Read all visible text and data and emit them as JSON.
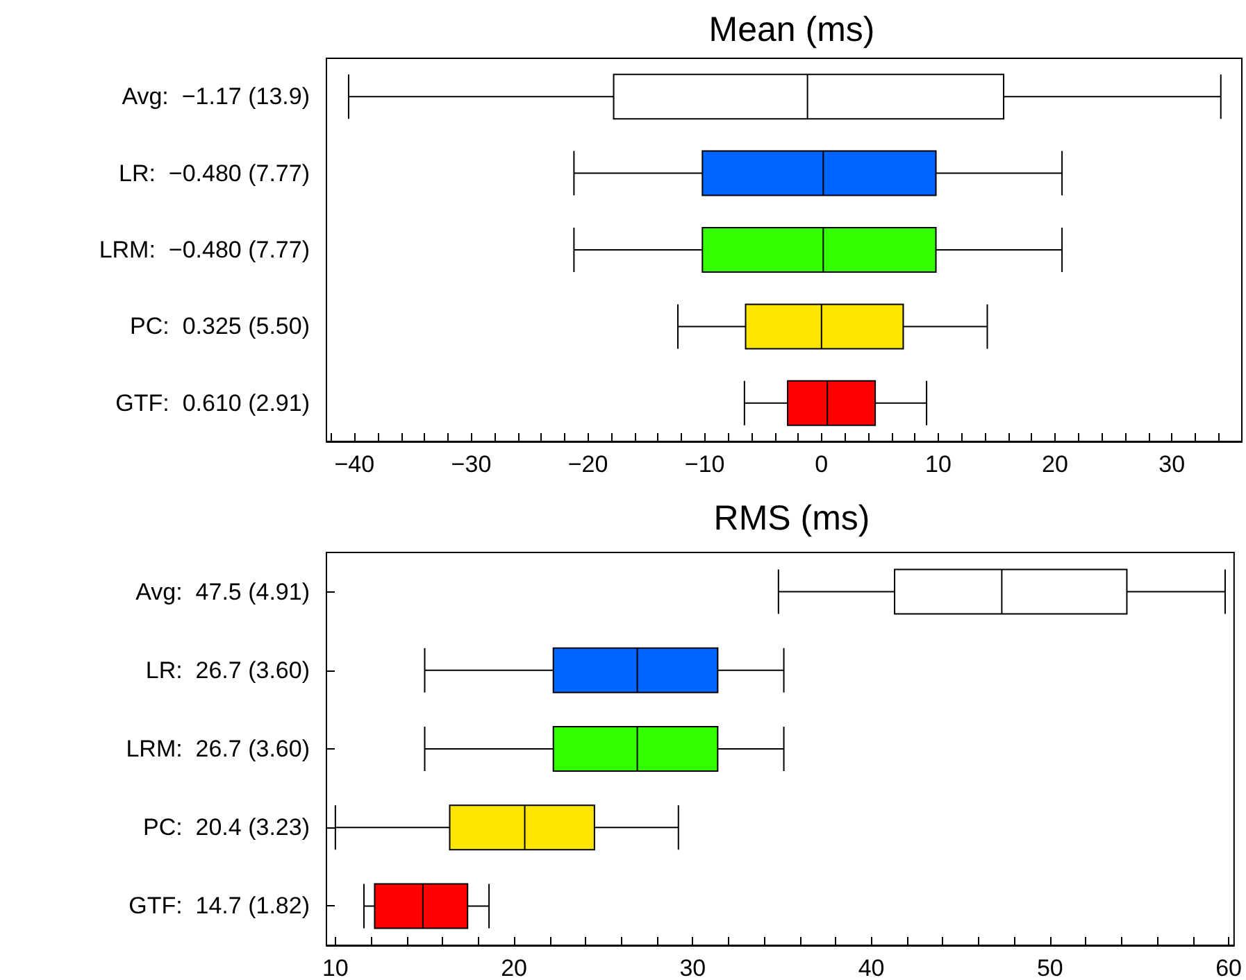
{
  "chart_data": [
    {
      "type": "box",
      "title": "Mean (ms)",
      "orientation": "horizontal",
      "categories": [
        "Avg:  −1.17 (13.9)",
        "LR:  −0.480 (7.77)",
        "LRM:  −0.480 (7.77)",
        "PC:  0.325 (5.50)",
        "GTF:  0.610 (2.91)"
      ],
      "boxes": [
        {
          "low": -40.5,
          "q1": -17.8,
          "median": -1.2,
          "q3": 15.6,
          "high": 34.2
        },
        {
          "low": -21.2,
          "q1": -10.2,
          "median": 0.15,
          "q3": 9.8,
          "high": 20.6
        },
        {
          "low": -21.2,
          "q1": -10.2,
          "median": 0.15,
          "q3": 9.8,
          "high": 20.6
        },
        {
          "low": -12.3,
          "q1": -6.5,
          "median": 0,
          "q3": 7.0,
          "high": 14.2
        },
        {
          "low": -6.6,
          "q1": -2.9,
          "median": 0.5,
          "q3": 4.6,
          "high": 9.0
        }
      ],
      "colors": [
        "#ffffff",
        "#0066ff",
        "#33ff00",
        "#ffe600",
        "#ff0000"
      ],
      "xlim": [
        -42.4,
        36
      ],
      "xticks": [
        {
          "value": -42,
          "label": null
        },
        {
          "value": -40,
          "label": "−40"
        },
        {
          "value": -38,
          "label": null
        },
        {
          "value": -36,
          "label": null
        },
        {
          "value": -34,
          "label": null
        },
        {
          "value": -32,
          "label": null
        },
        {
          "value": -30,
          "label": "−30"
        },
        {
          "value": -28,
          "label": null
        },
        {
          "value": -26,
          "label": null
        },
        {
          "value": -24,
          "label": null
        },
        {
          "value": -22,
          "label": null
        },
        {
          "value": -20,
          "label": "−20"
        },
        {
          "value": -18,
          "label": null
        },
        {
          "value": -16,
          "label": null
        },
        {
          "value": -14,
          "label": null
        },
        {
          "value": -12,
          "label": null
        },
        {
          "value": -10,
          "label": "−10"
        },
        {
          "value": -8,
          "label": null
        },
        {
          "value": -6,
          "label": null
        },
        {
          "value": -4,
          "label": null
        },
        {
          "value": -2,
          "label": null
        },
        0,
        {
          "value": 2,
          "label": null
        },
        {
          "value": 4,
          "label": null
        },
        {
          "value": 6,
          "label": null
        },
        {
          "value": 8,
          "label": null
        },
        10,
        {
          "value": 12,
          "label": null
        },
        {
          "value": 14,
          "label": null
        },
        {
          "value": 16,
          "label": null
        },
        {
          "value": 18,
          "label": null
        },
        20,
        {
          "value": 22,
          "label": null
        },
        {
          "value": 24,
          "label": null
        },
        {
          "value": 26,
          "label": null
        },
        {
          "value": 28,
          "label": null
        },
        30,
        {
          "value": 32,
          "label": null
        },
        {
          "value": 34,
          "label": null
        }
      ],
      "grid": false
    },
    {
      "type": "box",
      "title": "RMS (ms)",
      "orientation": "horizontal",
      "categories": [
        "Avg:  47.5 (4.91)",
        "LR:  26.7 (3.60)",
        "LRM:  26.7 (3.60)",
        "PC:  20.4 (3.23)",
        "GTF:  14.7 (1.82)"
      ],
      "boxes": [
        {
          "low": 34.8,
          "q1": 41.3,
          "median": 47.3,
          "q3": 54.3,
          "high": 59.8
        },
        {
          "low": 15.0,
          "q1": 22.2,
          "median": 26.9,
          "q3": 31.4,
          "high": 35.1
        },
        {
          "low": 15.0,
          "q1": 22.2,
          "median": 26.9,
          "q3": 31.4,
          "high": 35.1
        },
        {
          "low": 10.0,
          "q1": 16.4,
          "median": 20.6,
          "q3": 24.5,
          "high": 29.2
        },
        {
          "low": 11.6,
          "q1": 12.2,
          "median": 14.9,
          "q3": 17.4,
          "high": 18.6
        }
      ],
      "colors": [
        "#ffffff",
        "#0066ff",
        "#33ff00",
        "#ffe600",
        "#ff0000"
      ],
      "xlim": [
        9.5,
        60.3
      ],
      "xticks": [
        10,
        {
          "value": 12,
          "label": null
        },
        {
          "value": 14,
          "label": null
        },
        {
          "value": 16,
          "label": null
        },
        {
          "value": 18,
          "label": null
        },
        20,
        {
          "value": 22,
          "label": null
        },
        {
          "value": 24,
          "label": null
        },
        {
          "value": 26,
          "label": null
        },
        {
          "value": 28,
          "label": null
        },
        30,
        {
          "value": 32,
          "label": null
        },
        {
          "value": 34,
          "label": null
        },
        {
          "value": 36,
          "label": null
        },
        {
          "value": 38,
          "label": null
        },
        40,
        {
          "value": 42,
          "label": null
        },
        {
          "value": 44,
          "label": null
        },
        {
          "value": 46,
          "label": null
        },
        {
          "value": 48,
          "label": null
        },
        50,
        {
          "value": 52,
          "label": null
        },
        {
          "value": 54,
          "label": null
        },
        {
          "value": 56,
          "label": null
        },
        {
          "value": 58,
          "label": null
        },
        60
      ],
      "grid": false
    }
  ]
}
